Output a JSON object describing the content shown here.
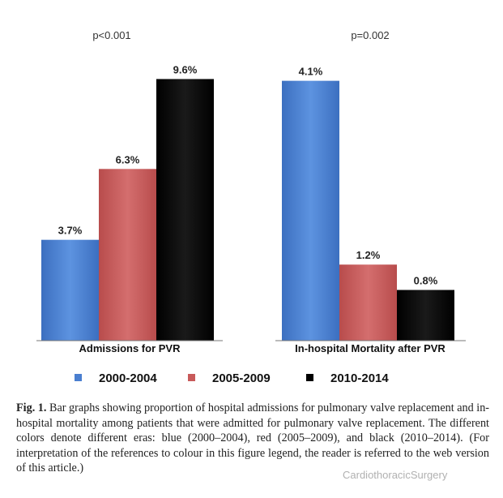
{
  "chart_data": [
    {
      "type": "bar",
      "title": "p<0.001",
      "xlabel": "Admissions for PVR",
      "ylim": [
        0,
        10
      ],
      "unit": "%",
      "series": [
        {
          "name": "2000-2004",
          "values": [
            3.7
          ],
          "labels": [
            "3.7%"
          ]
        },
        {
          "name": "2005-2009",
          "values": [
            6.3
          ],
          "labels": [
            "6.3%"
          ]
        },
        {
          "name": "2010-2014",
          "values": [
            9.6
          ],
          "labels": [
            "9.6%"
          ]
        }
      ]
    },
    {
      "type": "bar",
      "title": "p=0.002",
      "xlabel": "In-hospital Mortality after PVR",
      "ylim": [
        0,
        4.3
      ],
      "unit": "%",
      "series": [
        {
          "name": "2000-2004",
          "values": [
            4.1
          ],
          "labels": [
            "4.1%"
          ]
        },
        {
          "name": "2005-2009",
          "values": [
            1.2
          ],
          "labels": [
            "1.2%"
          ]
        },
        {
          "name": "2010-2014",
          "values": [
            0.8
          ],
          "labels": [
            "0.8%"
          ]
        }
      ]
    }
  ],
  "legend": {
    "items": [
      {
        "label": "2000-2004",
        "color": "#4a7fd0"
      },
      {
        "label": "2005-2009",
        "color": "#c85a5a"
      },
      {
        "label": "2010-2014",
        "color": "#000000"
      }
    ]
  },
  "colors": [
    "#4a7fd0",
    "#c85a5a",
    "#000000"
  ],
  "caption": {
    "label": "Fig. 1.",
    "text": " Bar graphs showing proportion of hospital admissions for pulmonary valve replacement and in-hospital mortality among patients that were admitted for pulmonary valve replacement. The different colors denote different eras: blue (2000–2004), red (2005–2009), and black (2010–2014). (For interpretation of the references to colour in this figure legend, the reader is referred to the web version of this article.)"
  },
  "watermark": "CardiothoracicSurgery"
}
